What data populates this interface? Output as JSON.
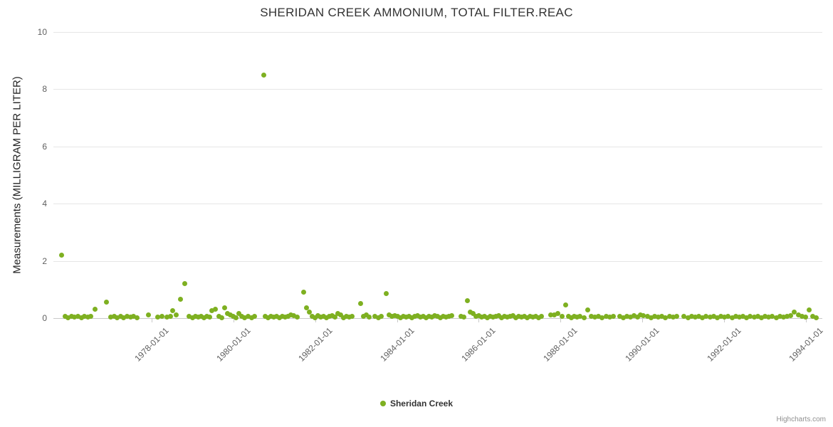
{
  "credits": "Highcharts.com",
  "chart_data": {
    "type": "scatter",
    "title": "SHERIDAN CREEK AMMONIUM, TOTAL FILTER.REAC",
    "xlabel": "",
    "ylabel": "Measurements (MILLIGRAM PER LITER)",
    "ylim": [
      0,
      10
    ],
    "xlim": [
      1975.6,
      1994.4
    ],
    "yticks": [
      0,
      2,
      4,
      6,
      8,
      10
    ],
    "xticks": [
      1978,
      1980,
      1982,
      1984,
      1986,
      1988,
      1990,
      1992,
      1994
    ],
    "xtick_labels": [
      "1978-01-01",
      "1980-01-01",
      "1982-01-01",
      "1984-01-01",
      "1986-01-01",
      "1988-01-01",
      "1990-01-01",
      "1992-01-01",
      "1994-01-01"
    ],
    "grid": "horizontal",
    "legend_position": "bottom-center",
    "colors": {
      "point": "#7eb021",
      "grid": "#e6e6e6",
      "axis": "#c9c9c9"
    },
    "series": [
      {
        "name": "Sheridan Creek",
        "color": "#7eb021",
        "points": [
          [
            1975.8,
            2.2
          ],
          [
            1975.88,
            0.05
          ],
          [
            1975.96,
            0.02
          ],
          [
            1976.04,
            0.06
          ],
          [
            1976.12,
            0.03
          ],
          [
            1976.2,
            0.05
          ],
          [
            1976.28,
            0.02
          ],
          [
            1976.36,
            0.06
          ],
          [
            1976.44,
            0.03
          ],
          [
            1976.52,
            0.05
          ],
          [
            1976.62,
            0.3
          ],
          [
            1976.9,
            0.55
          ],
          [
            1977.0,
            0.03
          ],
          [
            1977.08,
            0.05
          ],
          [
            1977.16,
            0.02
          ],
          [
            1977.24,
            0.05
          ],
          [
            1977.32,
            0.02
          ],
          [
            1977.4,
            0.05
          ],
          [
            1977.48,
            0.03
          ],
          [
            1977.56,
            0.05
          ],
          [
            1977.64,
            0.02
          ],
          [
            1977.92,
            0.1
          ],
          [
            1978.15,
            0.04
          ],
          [
            1978.25,
            0.07
          ],
          [
            1978.38,
            0.04
          ],
          [
            1978.46,
            0.06
          ],
          [
            1978.52,
            0.25
          ],
          [
            1978.6,
            0.1
          ],
          [
            1978.7,
            0.65
          ],
          [
            1978.82,
            1.2
          ],
          [
            1978.92,
            0.05
          ],
          [
            1979.0,
            0.02
          ],
          [
            1979.07,
            0.07
          ],
          [
            1979.14,
            0.03
          ],
          [
            1979.21,
            0.05
          ],
          [
            1979.28,
            0.02
          ],
          [
            1979.35,
            0.07
          ],
          [
            1979.42,
            0.04
          ],
          [
            1979.48,
            0.25
          ],
          [
            1979.56,
            0.3
          ],
          [
            1979.64,
            0.05
          ],
          [
            1979.71,
            0.02
          ],
          [
            1979.78,
            0.35
          ],
          [
            1979.85,
            0.15
          ],
          [
            1979.92,
            0.1
          ],
          [
            1979.99,
            0.05
          ],
          [
            1980.06,
            0.02
          ],
          [
            1980.13,
            0.15
          ],
          [
            1980.2,
            0.05
          ],
          [
            1980.28,
            0.02
          ],
          [
            1980.36,
            0.05
          ],
          [
            1980.44,
            0.02
          ],
          [
            1980.52,
            0.06
          ],
          [
            1980.74,
            8.5
          ],
          [
            1980.78,
            0.05
          ],
          [
            1980.85,
            0.02
          ],
          [
            1980.92,
            0.06
          ],
          [
            1980.99,
            0.03
          ],
          [
            1981.06,
            0.05
          ],
          [
            1981.13,
            0.02
          ],
          [
            1981.2,
            0.05
          ],
          [
            1981.27,
            0.03
          ],
          [
            1981.34,
            0.06
          ],
          [
            1981.41,
            0.12
          ],
          [
            1981.48,
            0.08
          ],
          [
            1981.56,
            0.04
          ],
          [
            1981.72,
            0.9
          ],
          [
            1981.78,
            0.35
          ],
          [
            1981.85,
            0.2
          ],
          [
            1981.92,
            0.05
          ],
          [
            1981.99,
            0.02
          ],
          [
            1982.06,
            0.08
          ],
          [
            1982.13,
            0.03
          ],
          [
            1982.2,
            0.05
          ],
          [
            1982.27,
            0.02
          ],
          [
            1982.34,
            0.06
          ],
          [
            1982.41,
            0.08
          ],
          [
            1982.48,
            0.03
          ],
          [
            1982.55,
            0.15
          ],
          [
            1982.62,
            0.12
          ],
          [
            1982.69,
            0.02
          ],
          [
            1982.76,
            0.05
          ],
          [
            1982.83,
            0.03
          ],
          [
            1982.9,
            0.05
          ],
          [
            1983.11,
            0.5
          ],
          [
            1983.18,
            0.05
          ],
          [
            1983.25,
            0.1
          ],
          [
            1983.32,
            0.03
          ],
          [
            1983.46,
            0.05
          ],
          [
            1983.54,
            0.02
          ],
          [
            1983.62,
            0.05
          ],
          [
            1983.74,
            0.85
          ],
          [
            1983.8,
            0.1
          ],
          [
            1983.87,
            0.05
          ],
          [
            1983.94,
            0.08
          ],
          [
            1984.01,
            0.05
          ],
          [
            1984.08,
            0.02
          ],
          [
            1984.15,
            0.06
          ],
          [
            1984.22,
            0.03
          ],
          [
            1984.29,
            0.05
          ],
          [
            1984.36,
            0.02
          ],
          [
            1984.43,
            0.05
          ],
          [
            1984.5,
            0.08
          ],
          [
            1984.57,
            0.03
          ],
          [
            1984.64,
            0.05
          ],
          [
            1984.71,
            0.02
          ],
          [
            1984.78,
            0.05
          ],
          [
            1984.85,
            0.03
          ],
          [
            1984.92,
            0.08
          ],
          [
            1984.99,
            0.05
          ],
          [
            1985.06,
            0.02
          ],
          [
            1985.13,
            0.05
          ],
          [
            1985.2,
            0.03
          ],
          [
            1985.27,
            0.05
          ],
          [
            1985.34,
            0.08
          ],
          [
            1985.56,
            0.05
          ],
          [
            1985.64,
            0.03
          ],
          [
            1985.72,
            0.6
          ],
          [
            1985.79,
            0.2
          ],
          [
            1985.86,
            0.15
          ],
          [
            1985.93,
            0.05
          ],
          [
            1986.0,
            0.08
          ],
          [
            1986.07,
            0.03
          ],
          [
            1986.14,
            0.05
          ],
          [
            1986.21,
            0.02
          ],
          [
            1986.28,
            0.06
          ],
          [
            1986.35,
            0.03
          ],
          [
            1986.42,
            0.05
          ],
          [
            1986.49,
            0.08
          ],
          [
            1986.56,
            0.02
          ],
          [
            1986.63,
            0.05
          ],
          [
            1986.7,
            0.03
          ],
          [
            1986.77,
            0.05
          ],
          [
            1986.84,
            0.08
          ],
          [
            1986.91,
            0.02
          ],
          [
            1986.98,
            0.05
          ],
          [
            1987.05,
            0.03
          ],
          [
            1987.12,
            0.05
          ],
          [
            1987.19,
            0.02
          ],
          [
            1987.26,
            0.05
          ],
          [
            1987.33,
            0.03
          ],
          [
            1987.4,
            0.06
          ],
          [
            1987.47,
            0.02
          ],
          [
            1987.54,
            0.05
          ],
          [
            1987.76,
            0.12
          ],
          [
            1987.85,
            0.1
          ],
          [
            1987.94,
            0.15
          ],
          [
            1988.04,
            0.05
          ],
          [
            1988.12,
            0.45
          ],
          [
            1988.2,
            0.05
          ],
          [
            1988.27,
            0.02
          ],
          [
            1988.34,
            0.06
          ],
          [
            1988.41,
            0.03
          ],
          [
            1988.48,
            0.05
          ],
          [
            1988.57,
            0.02
          ],
          [
            1988.66,
            0.28
          ],
          [
            1988.75,
            0.05
          ],
          [
            1988.84,
            0.03
          ],
          [
            1988.93,
            0.05
          ],
          [
            1989.02,
            0.02
          ],
          [
            1989.11,
            0.05
          ],
          [
            1989.2,
            0.03
          ],
          [
            1989.29,
            0.05
          ],
          [
            1989.44,
            0.05
          ],
          [
            1989.53,
            0.02
          ],
          [
            1989.62,
            0.05
          ],
          [
            1989.71,
            0.03
          ],
          [
            1989.8,
            0.08
          ],
          [
            1989.88,
            0.03
          ],
          [
            1989.95,
            0.1
          ],
          [
            1990.03,
            0.08
          ],
          [
            1990.12,
            0.05
          ],
          [
            1990.21,
            0.02
          ],
          [
            1990.3,
            0.05
          ],
          [
            1990.39,
            0.03
          ],
          [
            1990.48,
            0.05
          ],
          [
            1990.57,
            0.02
          ],
          [
            1990.66,
            0.05
          ],
          [
            1990.75,
            0.03
          ],
          [
            1990.84,
            0.05
          ],
          [
            1991.02,
            0.05
          ],
          [
            1991.11,
            0.02
          ],
          [
            1991.2,
            0.05
          ],
          [
            1991.29,
            0.03
          ],
          [
            1991.38,
            0.05
          ],
          [
            1991.47,
            0.02
          ],
          [
            1991.56,
            0.05
          ],
          [
            1991.65,
            0.03
          ],
          [
            1991.74,
            0.05
          ],
          [
            1991.83,
            0.02
          ],
          [
            1991.92,
            0.05
          ],
          [
            1992.01,
            0.03
          ],
          [
            1992.1,
            0.05
          ],
          [
            1992.19,
            0.02
          ],
          [
            1992.28,
            0.05
          ],
          [
            1992.37,
            0.03
          ],
          [
            1992.46,
            0.05
          ],
          [
            1992.55,
            0.02
          ],
          [
            1992.64,
            0.05
          ],
          [
            1992.73,
            0.03
          ],
          [
            1992.82,
            0.05
          ],
          [
            1992.91,
            0.02
          ],
          [
            1993.0,
            0.05
          ],
          [
            1993.09,
            0.03
          ],
          [
            1993.18,
            0.05
          ],
          [
            1993.27,
            0.02
          ],
          [
            1993.36,
            0.05
          ],
          [
            1993.45,
            0.03
          ],
          [
            1993.54,
            0.05
          ],
          [
            1993.63,
            0.08
          ],
          [
            1993.72,
            0.2
          ],
          [
            1993.81,
            0.1
          ],
          [
            1993.9,
            0.05
          ],
          [
            1993.99,
            0.03
          ],
          [
            1994.08,
            0.28
          ],
          [
            1994.17,
            0.05
          ],
          [
            1994.26,
            0.02
          ]
        ]
      }
    ]
  }
}
